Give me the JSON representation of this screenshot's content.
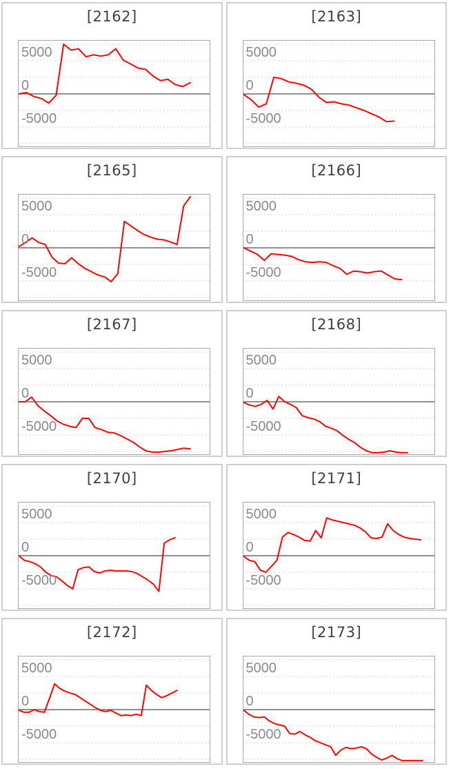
{
  "page": {
    "background": "#ffffff",
    "layout": "5x2 grid of small line charts"
  },
  "colors": {
    "series_line": "#ff0000",
    "zero_axis": "#7f7f7f",
    "gridline": "#d9d9d9",
    "plot_border": "#a6a6a6",
    "tile_border": "#cfcfcf",
    "tick_label": "#8a8a8a",
    "title_text": "#3f3f3f"
  },
  "y_axis": {
    "tick_labels": [
      "5000",
      "0",
      "-5000"
    ],
    "tick_values": [
      5000,
      0,
      -5000
    ],
    "gridline_values": [
      7500,
      5000,
      2500,
      -2500,
      -5000,
      -7500
    ],
    "gridline_step": 2500
  },
  "chart_data": [
    {
      "type": "line",
      "title": "[2162]",
      "ylim": [
        -7900,
        8000
      ],
      "grid": true,
      "x_fraction": 0.9,
      "values": [
        0,
        200,
        -400,
        -700,
        -1400,
        -200,
        7500,
        6600,
        6800,
        5600,
        5900,
        5700,
        5900,
        6800,
        5100,
        4500,
        3900,
        3700,
        2700,
        2000,
        2200,
        1400,
        1100,
        1700
      ]
    },
    {
      "type": "line",
      "title": "[2163]",
      "ylim": [
        -7900,
        8000
      ],
      "grid": true,
      "x_fraction": 0.79,
      "values": [
        -100,
        -900,
        -2000,
        -1500,
        2500,
        2300,
        1800,
        1600,
        1300,
        700,
        -500,
        -1300,
        -1200,
        -1500,
        -1700,
        -2100,
        -2500,
        -3000,
        -3500,
        -4200,
        -4100
      ]
    },
    {
      "type": "line",
      "title": "[2165]",
      "ylim": [
        -7900,
        8000
      ],
      "grid": true,
      "x_fraction": 0.9,
      "values": [
        200,
        800,
        1500,
        800,
        500,
        -1400,
        -2300,
        -2400,
        -1500,
        -2400,
        -3100,
        -3600,
        -4100,
        -4400,
        -5100,
        -3900,
        4000,
        3300,
        2600,
        2000,
        1600,
        1300,
        1200,
        900,
        500,
        6300,
        7700
      ]
    },
    {
      "type": "line",
      "title": "[2166]",
      "ylim": [
        -7900,
        8000
      ],
      "grid": true,
      "x_fraction": 0.83,
      "values": [
        0,
        -500,
        -1000,
        -1900,
        -900,
        -1000,
        -1100,
        -1300,
        -1800,
        -2100,
        -2200,
        -2100,
        -2200,
        -2700,
        -3100,
        -4000,
        -3500,
        -3600,
        -3800,
        -3600,
        -3500,
        -4100,
        -4700,
        -4800
      ]
    },
    {
      "type": "line",
      "title": "[2167]",
      "ylim": [
        -7900,
        8000
      ],
      "grid": true,
      "x_fraction": 0.9,
      "values": [
        0,
        0,
        700,
        -600,
        -1400,
        -2100,
        -2900,
        -3400,
        -3700,
        -3900,
        -2500,
        -2500,
        -3900,
        -4200,
        -4600,
        -4700,
        -5100,
        -5600,
        -6100,
        -6800,
        -7400,
        -7600,
        -7600,
        -7500,
        -7400,
        -7200,
        -7000,
        -7100
      ]
    },
    {
      "type": "line",
      "title": "[2168]",
      "ylim": [
        -7900,
        8000
      ],
      "grid": true,
      "x_fraction": 0.86,
      "values": [
        -100,
        -500,
        -700,
        -400,
        200,
        -1100,
        800,
        0,
        -400,
        -900,
        -2100,
        -2400,
        -2600,
        -3000,
        -3700,
        -4000,
        -4400,
        -5100,
        -5700,
        -6200,
        -6900,
        -7400,
        -7700,
        -7700,
        -7600,
        -7400,
        -7600,
        -7700,
        -7700
      ]
    },
    {
      "type": "line",
      "title": "[2170]",
      "ylim": [
        -7900,
        8000
      ],
      "grid": true,
      "x_fraction": 0.82,
      "values": [
        0,
        -700,
        -900,
        -1200,
        -1700,
        -2500,
        -3000,
        -3200,
        -3800,
        -4500,
        -5000,
        -2100,
        -1800,
        -1700,
        -2400,
        -2600,
        -2300,
        -2200,
        -2300,
        -2300,
        -2300,
        -2400,
        -2700,
        -3200,
        -3700,
        -4300,
        -5400,
        1900,
        2400,
        2700
      ]
    },
    {
      "type": "line",
      "title": "[2171]",
      "ylim": [
        -7900,
        8000
      ],
      "grid": true,
      "x_fraction": 0.93,
      "values": [
        -100,
        -700,
        -900,
        -2200,
        -2500,
        -1600,
        -700,
        2800,
        3500,
        3200,
        2800,
        2300,
        2200,
        3800,
        2700,
        5700,
        5400,
        5200,
        5000,
        4800,
        4600,
        4200,
        3600,
        2700,
        2600,
        2800,
        4800,
        3800,
        3200,
        2800,
        2600,
        2500,
        2400
      ]
    },
    {
      "type": "line",
      "title": "[2172]",
      "ylim": [
        -7900,
        8000
      ],
      "grid": true,
      "x_fraction": 0.83,
      "values": [
        -100,
        -400,
        -400,
        0,
        -300,
        -400,
        1700,
        3900,
        3200,
        2800,
        2500,
        2300,
        1800,
        1300,
        800,
        300,
        -100,
        -300,
        -100,
        -500,
        -900,
        -800,
        -900,
        -700,
        -900,
        3700,
        2900,
        2300,
        1800,
        2100,
        2500,
        2900
      ]
    },
    {
      "type": "line",
      "title": "[2173]",
      "ylim": [
        -7900,
        8000
      ],
      "grid": true,
      "x_fraction": 0.94,
      "values": [
        -100,
        -700,
        -1100,
        -1200,
        -1100,
        -1700,
        -2100,
        -2300,
        -2500,
        -3600,
        -3700,
        -3300,
        -3800,
        -4200,
        -4700,
        -5000,
        -5300,
        -5600,
        -6900,
        -6100,
        -5700,
        -5900,
        -5800,
        -5600,
        -5900,
        -6700,
        -7200,
        -7600,
        -7300,
        -6900,
        -7400,
        -7700,
        -7700,
        -7700,
        -7700,
        -7700
      ]
    }
  ]
}
